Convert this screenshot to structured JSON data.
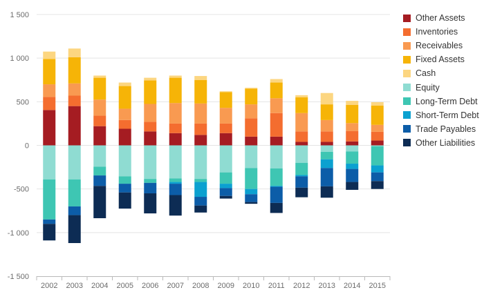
{
  "chart_data": {
    "type": "bar",
    "stacked": true,
    "title": "",
    "xlabel": "",
    "ylabel": "",
    "ylim": [
      -1500,
      1500
    ],
    "yticks": [
      1500,
      1000,
      500,
      0,
      -500,
      -1000,
      -1500
    ],
    "ytick_labels": [
      "1 500",
      "1 000",
      "500",
      "0",
      "-500",
      "-1 000",
      "-1 500"
    ],
    "grid": "horizontal",
    "legend_position": "right",
    "categories": [
      "2002",
      "2003",
      "2004",
      "2005",
      "2006",
      "2007",
      "2008",
      "2009",
      "2010",
      "2011",
      "2012",
      "2013",
      "2014",
      "2015"
    ],
    "series": [
      {
        "name": "Other Assets",
        "color": "#a51c22",
        "stack": "positive",
        "values": [
          405,
          450,
          220,
          190,
          160,
          140,
          120,
          140,
          100,
          100,
          40,
          40,
          45,
          55
        ]
      },
      {
        "name": "Inventories",
        "color": "#f46d2f",
        "stack": "positive",
        "values": [
          150,
          120,
          120,
          100,
          110,
          110,
          130,
          110,
          210,
          270,
          120,
          120,
          120,
          100
        ]
      },
      {
        "name": "Receivables",
        "color": "#f99a51",
        "stack": "positive",
        "values": [
          145,
          140,
          185,
          130,
          205,
          235,
          230,
          180,
          160,
          170,
          210,
          130,
          90,
          80
        ]
      },
      {
        "name": "Fixed Assets",
        "color": "#f6b407",
        "stack": "positive",
        "values": [
          290,
          300,
          250,
          260,
          270,
          290,
          270,
          180,
          180,
          180,
          180,
          180,
          210,
          220
        ]
      },
      {
        "name": "Cash",
        "color": "#fcd681",
        "stack": "positive",
        "values": [
          85,
          100,
          25,
          40,
          30,
          25,
          45,
          10,
          10,
          40,
          25,
          130,
          45,
          40
        ]
      },
      {
        "name": "Equity",
        "color": "#8fdcd2",
        "stack": "negative",
        "values": [
          -390,
          -390,
          -245,
          -355,
          -385,
          -380,
          -385,
          -310,
          -260,
          -265,
          -200,
          -75,
          -70,
          -10
        ]
      },
      {
        "name": "Long-Term Debt",
        "color": "#3ec6b3",
        "stack": "negative",
        "values": [
          -460,
          -310,
          -100,
          -85,
          -45,
          -40,
          -35,
          -130,
          -240,
          -200,
          -140,
          -85,
          -140,
          -220
        ]
      },
      {
        "name": "Short-Term Debt",
        "color": "#0ba1d0",
        "stack": "negative",
        "values": [
          0,
          0,
          0,
          0,
          0,
          -20,
          -170,
          -50,
          -60,
          -10,
          -15,
          -100,
          -60,
          -80
        ]
      },
      {
        "name": "Trade Payables",
        "color": "#0c5da8",
        "stack": "negative",
        "values": [
          -50,
          -100,
          -120,
          -100,
          -120,
          -130,
          -100,
          -90,
          -90,
          -185,
          -130,
          -210,
          -150,
          -100
        ]
      },
      {
        "name": "Other Liabilities",
        "color": "#0d2c54",
        "stack": "negative",
        "values": [
          -190,
          -320,
          -370,
          -185,
          -230,
          -235,
          -80,
          -30,
          -20,
          -115,
          -110,
          -130,
          -90,
          -90
        ]
      }
    ]
  }
}
